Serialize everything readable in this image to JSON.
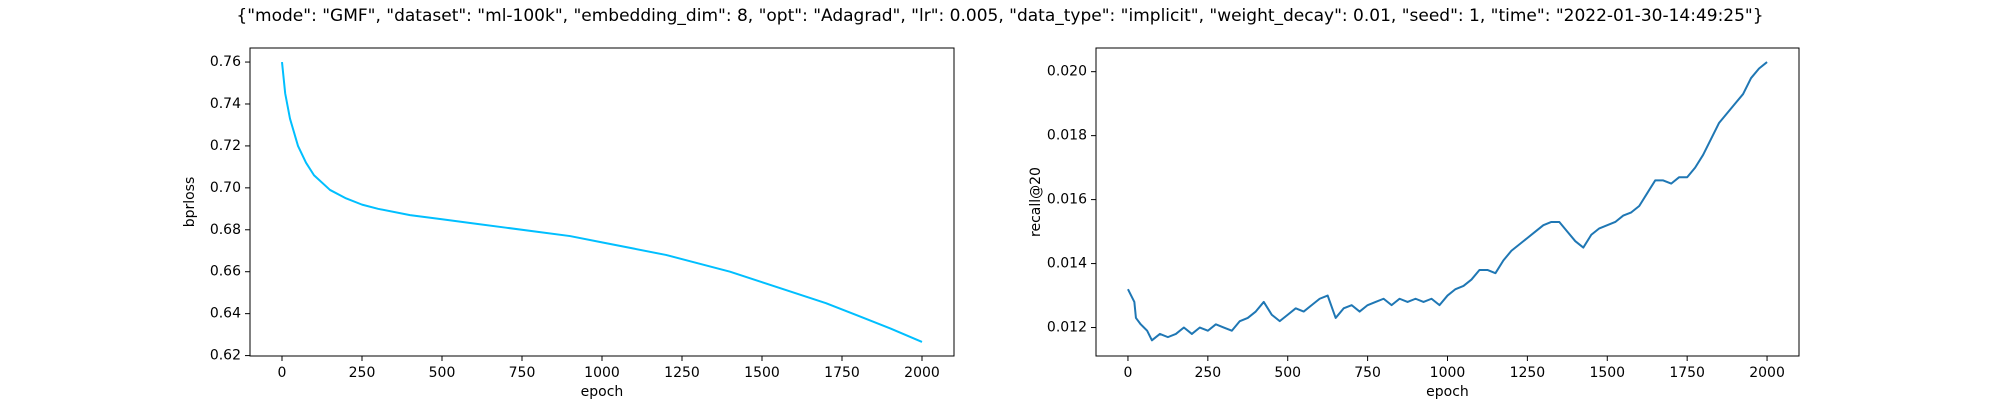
{
  "title": "{\"mode\": \"GMF\", \"dataset\": \"ml-100k\", \"embedding_dim\": 8, \"opt\": \"Adagrad\", \"lr\": 0.005, \"data_type\": \"implicit\", \"weight_decay\": 0.01, \"seed\": 1, \"time\": \"2022-01-30-14:49:25\"}",
  "chart_data": [
    {
      "type": "line",
      "xlabel": "epoch",
      "ylabel": "bprloss",
      "x": [
        0,
        10,
        25,
        50,
        75,
        100,
        150,
        200,
        250,
        300,
        400,
        500,
        600,
        700,
        800,
        900,
        1000,
        1100,
        1200,
        1300,
        1400,
        1500,
        1600,
        1700,
        1800,
        1900,
        2000
      ],
      "series": [
        {
          "name": "bprloss",
          "color": "#00bfff",
          "values": [
            0.76,
            0.745,
            0.733,
            0.72,
            0.712,
            0.706,
            0.699,
            0.695,
            0.692,
            0.69,
            0.687,
            0.685,
            0.683,
            0.681,
            0.679,
            0.677,
            0.674,
            0.671,
            0.668,
            0.664,
            0.66,
            0.655,
            0.65,
            0.645,
            0.639,
            0.633,
            0.6265
          ]
        }
      ],
      "xlim": [
        -100,
        2100
      ],
      "xticks": [
        0,
        250,
        500,
        750,
        1000,
        1250,
        1500,
        1750,
        2000
      ],
      "ylim": [
        0.6198,
        0.7667
      ],
      "yticks": [
        0.62,
        0.64,
        0.66,
        0.68,
        {
          "value": 0.7,
          "label": "0.70"
        },
        0.72,
        0.74,
        0.76
      ]
    },
    {
      "type": "line",
      "xlabel": "epoch",
      "ylabel": "recall@20",
      "x": [
        0,
        10,
        20,
        25,
        40,
        60,
        75,
        100,
        125,
        150,
        175,
        200,
        225,
        250,
        275,
        300,
        325,
        350,
        375,
        400,
        425,
        450,
        475,
        500,
        525,
        550,
        575,
        600,
        625,
        650,
        675,
        700,
        725,
        750,
        775,
        800,
        825,
        850,
        875,
        900,
        925,
        950,
        975,
        1000,
        1025,
        1050,
        1075,
        1100,
        1125,
        1150,
        1175,
        1200,
        1225,
        1250,
        1275,
        1300,
        1325,
        1350,
        1375,
        1400,
        1425,
        1450,
        1475,
        1500,
        1525,
        1550,
        1575,
        1600,
        1625,
        1650,
        1675,
        1700,
        1725,
        1750,
        1775,
        1800,
        1825,
        1850,
        1875,
        1900,
        1925,
        1950,
        1975,
        2000
      ],
      "series": [
        {
          "name": "recall@20",
          "color": "#1f77b4",
          "values": [
            0.0132,
            0.013,
            0.0128,
            0.0123,
            0.0121,
            0.0119,
            0.0116,
            0.0118,
            0.0117,
            0.0118,
            0.012,
            0.0118,
            0.012,
            0.0119,
            0.0121,
            0.012,
            0.0119,
            0.0122,
            0.0123,
            0.0125,
            0.0128,
            0.0124,
            0.0122,
            0.0124,
            0.0126,
            0.0125,
            0.0127,
            0.0129,
            0.013,
            0.0123,
            0.0126,
            0.0127,
            0.0125,
            0.0127,
            0.0128,
            0.0129,
            0.0127,
            0.0129,
            0.0128,
            0.0129,
            0.0128,
            0.0129,
            0.0127,
            0.013,
            0.0132,
            0.0133,
            0.0135,
            0.0138,
            0.0138,
            0.0137,
            0.0141,
            0.0144,
            0.0146,
            0.0148,
            0.015,
            0.0152,
            0.0153,
            0.0153,
            0.015,
            0.0147,
            0.0145,
            0.0149,
            0.0151,
            0.0152,
            0.0153,
            0.0155,
            0.0156,
            0.0158,
            0.0162,
            0.0166,
            0.0166,
            0.0165,
            0.0167,
            0.0167,
            0.017,
            0.0174,
            0.0179,
            0.0184,
            0.0187,
            0.019,
            0.0193,
            0.0198,
            0.0201,
            0.0203
          ]
        }
      ],
      "xlim": [
        -100,
        2100
      ],
      "xticks": [
        0,
        250,
        500,
        750,
        1000,
        1250,
        1500,
        1750,
        2000
      ],
      "ylim": [
        0.01111,
        0.02074
      ],
      "yticks": [
        0.012,
        0.014,
        0.016,
        0.018,
        {
          "value": 0.02,
          "label": "0.020"
        }
      ]
    }
  ]
}
